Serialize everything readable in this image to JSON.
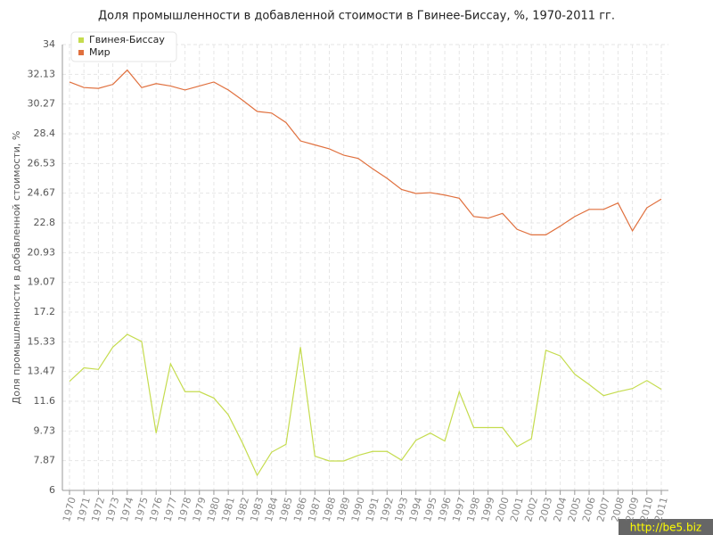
{
  "chart_data": {
    "type": "line",
    "title": "Доля промышленности в добавленной стоимости в Гвинее-Биссау, %, 1970-2011 гг.",
    "y_label": "Доля промышленности в добавленной стоимости, %",
    "watermark": "http://be5.biz",
    "categories": [
      "1970",
      "1971",
      "1972",
      "1973",
      "1974",
      "1975",
      "1976",
      "1977",
      "1978",
      "1979",
      "1980",
      "1981",
      "1982",
      "1983",
      "1984",
      "1985",
      "1986",
      "1987",
      "1988",
      "1989",
      "1990",
      "1991",
      "1992",
      "1993",
      "1994",
      "1995",
      "1996",
      "1997",
      "1998",
      "1999",
      "2000",
      "2001",
      "2002",
      "2003",
      "2004",
      "2005",
      "2006",
      "2007",
      "2008",
      "2009",
      "2010",
      "2011"
    ],
    "series": [
      {
        "name": "Гвинея-Биссау",
        "color": "#c5dc4e",
        "values": [
          12.85,
          13.7,
          13.6,
          15.0,
          15.8,
          15.35,
          9.6,
          13.95,
          12.2,
          12.2,
          11.8,
          10.75,
          8.95,
          6.95,
          8.4,
          8.9,
          15.0,
          8.15,
          7.85,
          7.85,
          8.2,
          8.45,
          8.45,
          7.9,
          9.15,
          9.6,
          9.1,
          12.2,
          9.95,
          9.95,
          9.95,
          8.75,
          9.25,
          14.8,
          14.45,
          13.3,
          12.65,
          11.95,
          12.2,
          12.4,
          12.9,
          12.35
        ]
      },
      {
        "name": "Мир",
        "color": "#e0703e",
        "values": [
          31.65,
          31.3,
          31.25,
          31.5,
          32.4,
          31.3,
          31.55,
          31.4,
          31.15,
          31.4,
          31.65,
          31.15,
          30.5,
          29.8,
          29.7,
          29.1,
          27.95,
          27.7,
          27.45,
          27.05,
          26.85,
          26.2,
          25.6,
          24.9,
          24.65,
          24.7,
          24.55,
          24.35,
          23.2,
          23.1,
          23.4,
          22.4,
          22.05,
          22.05,
          22.6,
          23.2,
          23.65,
          23.65,
          24.05,
          22.3,
          23.75,
          24.3
        ]
      }
    ],
    "ylim": [
      6,
      34
    ],
    "yticks": [
      6,
      7.87,
      9.73,
      11.6,
      13.47,
      15.33,
      17.2,
      19.07,
      20.93,
      22.8,
      24.67,
      26.53,
      28.4,
      30.27,
      32.13,
      34
    ],
    "grid": true,
    "legend": "top-left"
  }
}
